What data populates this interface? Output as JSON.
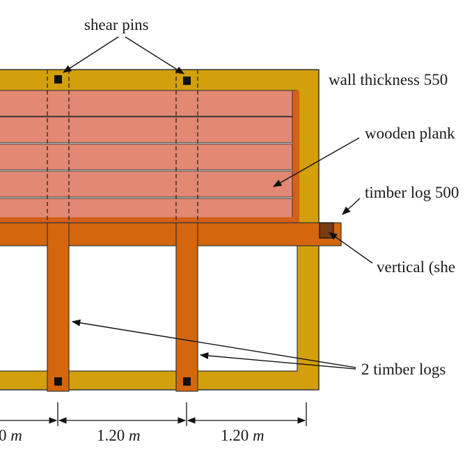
{
  "labels": {
    "shear_pins": "shear pins",
    "wall_thickness": "wall thickness 550",
    "wooden_planks": "wooden plank",
    "timber_log": "timber log 500",
    "vertical_shear": "vertical (she",
    "two_timber_logs": "2 timber logs"
  },
  "dimensions": [
    {
      "value": "0",
      "unit": "m"
    },
    {
      "value": "1.20",
      "unit": "m"
    },
    {
      "value": "1.20",
      "unit": "m"
    }
  ],
  "colors": {
    "wall": "#D39F0C",
    "timber": "#D4660D",
    "plank": "#E38872",
    "plank_edge": "#D4601A",
    "pin": "#111111",
    "vertical_block": "#7A3A12",
    "outline": "#222222"
  }
}
